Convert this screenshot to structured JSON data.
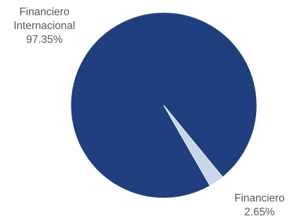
{
  "chart_data": {
    "type": "pie",
    "title": "",
    "slices": [
      {
        "label": "Financiero Internacional",
        "label_lines": [
          "Financiero",
          "Internacional"
        ],
        "value": 97.35,
        "value_label": "97.35%",
        "color": "#1f3f7f"
      },
      {
        "label": "Financiero",
        "label_lines": [
          "Financiero"
        ],
        "value": 2.65,
        "value_label": "2.65%",
        "color": "#c9d5ea"
      }
    ]
  }
}
